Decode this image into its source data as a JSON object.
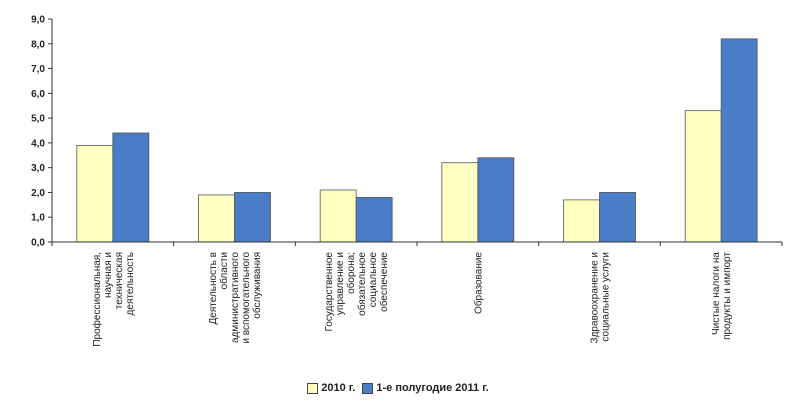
{
  "chart_data": {
    "type": "bar",
    "categories": [
      [
        "Профессиональная,",
        "научная и",
        "техническая",
        "деятельность"
      ],
      [
        "Деятельность в",
        "области",
        "административного",
        "и вспомогательного",
        "обслуживания"
      ],
      [
        "Государственное",
        "управление и",
        "оборона;",
        "обязательное",
        "социальное",
        "обеспечение"
      ],
      [
        "Образование"
      ],
      [
        "Здравоохранение и",
        "социальные услуги"
      ],
      [
        "Чистые налоги на",
        "продукты и импорт"
      ]
    ],
    "series": [
      {
        "name": "2010 г.",
        "values": [
          3.9,
          1.9,
          2.1,
          3.2,
          1.7,
          5.3
        ],
        "color": "#FFFFC0"
      },
      {
        "name": "1-е полугодие 2011 г.",
        "values": [
          4.4,
          2.0,
          1.8,
          3.4,
          2.0,
          8.2
        ],
        "color": "#4A7CC7"
      }
    ],
    "ylim": [
      0,
      9
    ],
    "ytick_step": 1,
    "ytick_labels": [
      "0,0",
      "1,0",
      "2,0",
      "3,0",
      "4,0",
      "5,0",
      "6,0",
      "7,0",
      "8,0",
      "9,0"
    ],
    "grid": false,
    "legend_position": "bottom"
  }
}
